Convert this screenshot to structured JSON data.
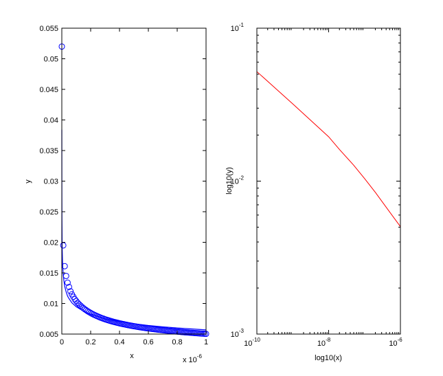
{
  "chart_data": [
    {
      "type": "scatter",
      "xlabel": "x",
      "ylabel": "y",
      "x_exponent_label": "x 10",
      "x_exponent_power": "-6",
      "xlim": [
        0,
        1e-06
      ],
      "ylim": [
        0.005,
        0.055
      ],
      "xticks": [
        0,
        2e-07,
        4e-07,
        6e-07,
        8e-07,
        1e-06
      ],
      "xtick_labels": [
        "0",
        "0.2",
        "0.4",
        "0.6",
        "0.8",
        "1"
      ],
      "yticks": [
        0.005,
        0.01,
        0.015,
        0.02,
        0.025,
        0.03,
        0.035,
        0.04,
        0.045,
        0.05,
        0.055
      ],
      "ytick_labels": [
        "0.005",
        "0.01",
        "0.015",
        "0.02",
        "0.025",
        "0.03",
        "0.035",
        "0.04",
        "0.045",
        "0.05",
        "0.055"
      ],
      "grid": false,
      "marker_color": "#0000ff",
      "line_color": "#0000ff",
      "marker_series": {
        "x": [
          1e-10,
          1e-08,
          2e-08,
          3e-08,
          4e-08,
          5e-08,
          6e-08,
          7e-08,
          8e-08,
          9e-08,
          1e-07,
          1.1e-07,
          1.2e-07,
          1.3e-07,
          1.4e-07,
          1.5e-07,
          1.6e-07,
          1.7e-07,
          1.8e-07,
          1.9e-07,
          2e-07,
          2.1e-07,
          2.2e-07,
          2.3e-07,
          2.4e-07,
          2.5e-07,
          2.6e-07,
          2.7e-07,
          2.8e-07,
          2.9e-07,
          3e-07,
          3.1e-07,
          3.2e-07,
          3.3e-07,
          3.4e-07,
          3.5e-07,
          3.6e-07,
          3.7e-07,
          3.8e-07,
          3.9e-07,
          4e-07,
          4.1e-07,
          4.2e-07,
          4.3e-07,
          4.4e-07,
          4.5e-07,
          4.6e-07,
          4.7e-07,
          4.8e-07,
          4.9e-07,
          5e-07,
          5.1e-07,
          5.2e-07,
          5.3e-07,
          5.4e-07,
          5.5e-07,
          5.6e-07,
          5.7e-07,
          5.8e-07,
          5.9e-07,
          6e-07,
          6.1e-07,
          6.2e-07,
          6.3e-07,
          6.4e-07,
          6.5e-07,
          6.6e-07,
          6.7e-07,
          6.8e-07,
          6.9e-07,
          7e-07,
          7.1e-07,
          7.2e-07,
          7.3e-07,
          7.4e-07,
          7.5e-07,
          7.6e-07,
          7.7e-07,
          7.8e-07,
          7.9e-07,
          8e-07,
          8.1e-07,
          8.2e-07,
          8.3e-07,
          8.4e-07,
          8.5e-07,
          8.6e-07,
          8.7e-07,
          8.8e-07,
          8.9e-07,
          9e-07,
          9.1e-07,
          9.2e-07,
          9.3e-07,
          9.4e-07,
          9.5e-07,
          9.6e-07,
          9.7e-07,
          9.8e-07,
          9.9e-07,
          1e-06
        ],
        "y": [
          0.052,
          0.0195,
          0.0161,
          0.0145,
          0.0134,
          0.0127,
          0.012,
          0.0115,
          0.0111,
          0.0107,
          0.0104,
          0.0101,
          0.00987,
          0.00964,
          0.00943,
          0.00923,
          0.00905,
          0.00889,
          0.00873,
          0.00859,
          0.00845,
          0.00832,
          0.0082,
          0.00809,
          0.00798,
          0.00788,
          0.00778,
          0.00768,
          0.00759,
          0.00751,
          0.00742,
          0.00735,
          0.00727,
          0.0072,
          0.00713,
          0.00706,
          0.007,
          0.00694,
          0.00688,
          0.00682,
          0.00676,
          0.00671,
          0.00666,
          0.00661,
          0.00656,
          0.00651,
          0.00646,
          0.00642,
          0.00637,
          0.00633,
          0.00629,
          0.00625,
          0.00621,
          0.00617,
          0.00613,
          0.0061,
          0.00606,
          0.00603,
          0.00599,
          0.00596,
          0.00593,
          0.0059,
          0.00587,
          0.00584,
          0.00581,
          0.00578,
          0.00575,
          0.00572,
          0.0057,
          0.00567,
          0.00564,
          0.00562,
          0.00559,
          0.00557,
          0.00554,
          0.00552,
          0.0055,
          0.00547,
          0.00545,
          0.00543,
          0.00541,
          0.00539,
          0.00537,
          0.00534,
          0.00532,
          0.0053,
          0.00528,
          0.00527,
          0.00525,
          0.00523,
          0.00521,
          0.00519,
          0.00517,
          0.00516,
          0.00514,
          0.00512,
          0.0051,
          0.00509,
          0.00507,
          0.00506,
          0.00504
        ]
      },
      "line_series": {
        "x": [
          1e-10,
          5e-10,
          1e-09,
          2e-09,
          3e-09,
          5e-09,
          7e-09,
          1e-08,
          1.5e-08,
          2e-08,
          3e-08,
          4e-08,
          5e-08,
          7e-08,
          1e-07,
          1.5e-07,
          2e-07,
          3e-07,
          4e-07,
          5e-07,
          6e-07,
          7e-07,
          8e-07,
          9e-07,
          1e-06
        ],
        "y": [
          0.0384,
          0.0274,
          0.0236,
          0.0203,
          0.0186,
          0.0168,
          0.0158,
          0.0147,
          0.0136,
          0.0128,
          0.0119,
          0.0112,
          0.0108,
          0.0101,
          0.00947,
          0.00874,
          0.00823,
          0.00752,
          0.00705,
          0.00669,
          0.00641,
          0.00619,
          0.006,
          0.00584,
          0.00569
        ]
      }
    },
    {
      "type": "line",
      "scale": "log-log",
      "xlabel": "log10(x)",
      "ylabel": "log10(y)",
      "xlim": [
        1e-10,
        1e-06
      ],
      "ylim": [
        0.001,
        0.1
      ],
      "xticks": [
        {
          "value": 1e-10,
          "base": "10",
          "exp": "-10"
        },
        {
          "value": 1e-08,
          "base": "10",
          "exp": "-8"
        },
        {
          "value": 1e-06,
          "base": "10",
          "exp": "-6"
        }
      ],
      "yticks": [
        {
          "value": 0.001,
          "base": "10",
          "exp": "-3"
        },
        {
          "value": 0.01,
          "base": "10",
          "exp": "-2"
        },
        {
          "value": 0.1,
          "base": "10",
          "exp": "-1"
        }
      ],
      "grid": false,
      "line_color": "#ff0000",
      "series": {
        "x": [
          1e-10,
          1e-09,
          1e-08,
          2e-08,
          5e-08,
          1e-07,
          2e-07,
          5e-07,
          1e-06
        ],
        "y": [
          0.052,
          0.032,
          0.0195,
          0.0161,
          0.0127,
          0.0104,
          0.00845,
          0.00629,
          0.00504
        ]
      }
    }
  ]
}
